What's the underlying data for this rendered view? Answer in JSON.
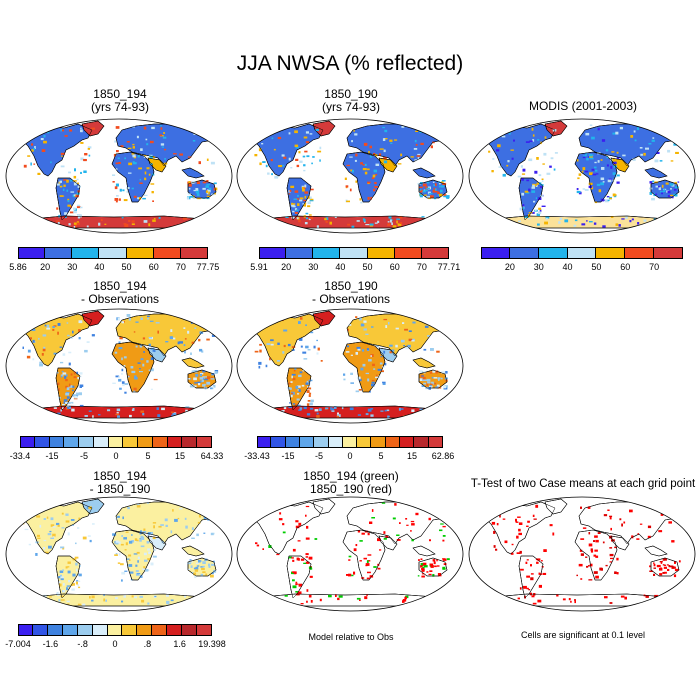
{
  "main_title": "JJA NWSA (% reflected)",
  "colors": {
    "scale6": [
      "#3b1ff0",
      "#3d6fe2",
      "#22b4ec",
      "#bfe2f5",
      "#f5b400",
      "#f24b1e",
      "#d43a3a"
    ],
    "scale12": [
      "#3b1ff0",
      "#3155e6",
      "#3f82e0",
      "#5fa6ea",
      "#9ccdef",
      "#d9eefa",
      "#fbf0a0",
      "#f8c838",
      "#f09b15",
      "#ee6418",
      "#d51f1f",
      "#b8282c",
      "#d43a3a"
    ],
    "ocean": "#ffffff",
    "coast": "#000000",
    "sig_red": "#ff0000",
    "sig_green": "#00cc00"
  },
  "panels": [
    {
      "id": "p1",
      "title_line1": "1850_194",
      "title_line2": "(yrs 74-93)",
      "style": "model",
      "colorbar": {
        "scale": "scale6",
        "labels": [
          "5.86",
          "20",
          "30",
          "40",
          "50",
          "60",
          "70",
          "77.75"
        ]
      }
    },
    {
      "id": "p2",
      "title_line1": "1850_190",
      "title_line2": "(yrs 74-93)",
      "style": "model",
      "colorbar": {
        "scale": "scale6",
        "labels": [
          "5.91",
          "20",
          "30",
          "40",
          "50",
          "60",
          "70",
          "77.71"
        ]
      }
    },
    {
      "id": "p3",
      "title_line1": "MODIS (2001-2003)",
      "title_line2": "",
      "style": "obs",
      "colorbar": {
        "scale": "scale6",
        "labels": [
          "",
          "20",
          "30",
          "40",
          "50",
          "60",
          "70",
          ""
        ]
      }
    },
    {
      "id": "p4",
      "title_line1": "1850_194",
      "title_line2": "- Observations",
      "style": "diff",
      "colorbar": {
        "scale": "scale12",
        "labels": [
          "-33.4",
          "-15",
          "-5",
          "0",
          "5",
          "15",
          "64.33"
        ]
      }
    },
    {
      "id": "p5",
      "title_line1": "1850_190",
      "title_line2": "- Observations",
      "style": "diff",
      "colorbar": {
        "scale": "scale12",
        "labels": [
          "-33.43",
          "-15",
          "-5",
          "0",
          "5",
          "15",
          "62.86"
        ]
      }
    },
    {
      "id": "p7",
      "title_line1": "1850_194",
      "title_line2": "- 1850_190",
      "style": "modeldiff",
      "colorbar": {
        "scale": "scale12",
        "labels": [
          "-7.004",
          "-1.6",
          "-.8",
          "0",
          ".8",
          "1.6",
          "19.398"
        ]
      }
    },
    {
      "id": "p8",
      "title_line1": "1850_194 (green)",
      "title_line2": "1850_190 (red)",
      "style": "sig2",
      "colorbar": null
    },
    {
      "id": "p9",
      "title_line1": "T-Test of two Case means at each grid point",
      "title_line2": "",
      "style": "ttest",
      "colorbar": null
    }
  ],
  "notes": {
    "model_relative": "Model relative to Obs",
    "cells_significant": "Cells are significant at 0.1 level"
  },
  "chart_data": {
    "type": "heatmap",
    "title": "JJA NWSA (% reflected)",
    "season": "JJA",
    "variable": "NWSA (% reflected)",
    "maps": [
      {
        "name": "1850_194 (yrs 74-93)",
        "min": 5.86,
        "max": 77.75,
        "levels": [
          20,
          30,
          40,
          50,
          60,
          70
        ]
      },
      {
        "name": "1850_190 (yrs 74-93)",
        "min": 5.91,
        "max": 77.71,
        "levels": [
          20,
          30,
          40,
          50,
          60,
          70
        ]
      },
      {
        "name": "MODIS (2001-2003)",
        "levels": [
          20,
          30,
          40,
          50,
          60,
          70
        ]
      },
      {
        "name": "1850_194 - Observations",
        "min": -33.4,
        "max": 64.33,
        "levels": [
          -15,
          -5,
          0,
          5,
          15
        ]
      },
      {
        "name": "1850_190 - Observations",
        "min": -33.43,
        "max": 62.86,
        "levels": [
          -15,
          -5,
          0,
          5,
          15
        ]
      },
      {
        "name": "1850_194 - 1850_190",
        "min": -7.004,
        "max": 19.398,
        "levels": [
          -1.6,
          -0.8,
          0,
          0.8,
          1.6
        ]
      },
      {
        "name": "1850_194 (green) / 1850_190 (red) significance",
        "note": "Model relative to Obs"
      },
      {
        "name": "T-Test of two Case means at each grid point",
        "note": "Cells are significant at 0.1 level"
      }
    ]
  }
}
